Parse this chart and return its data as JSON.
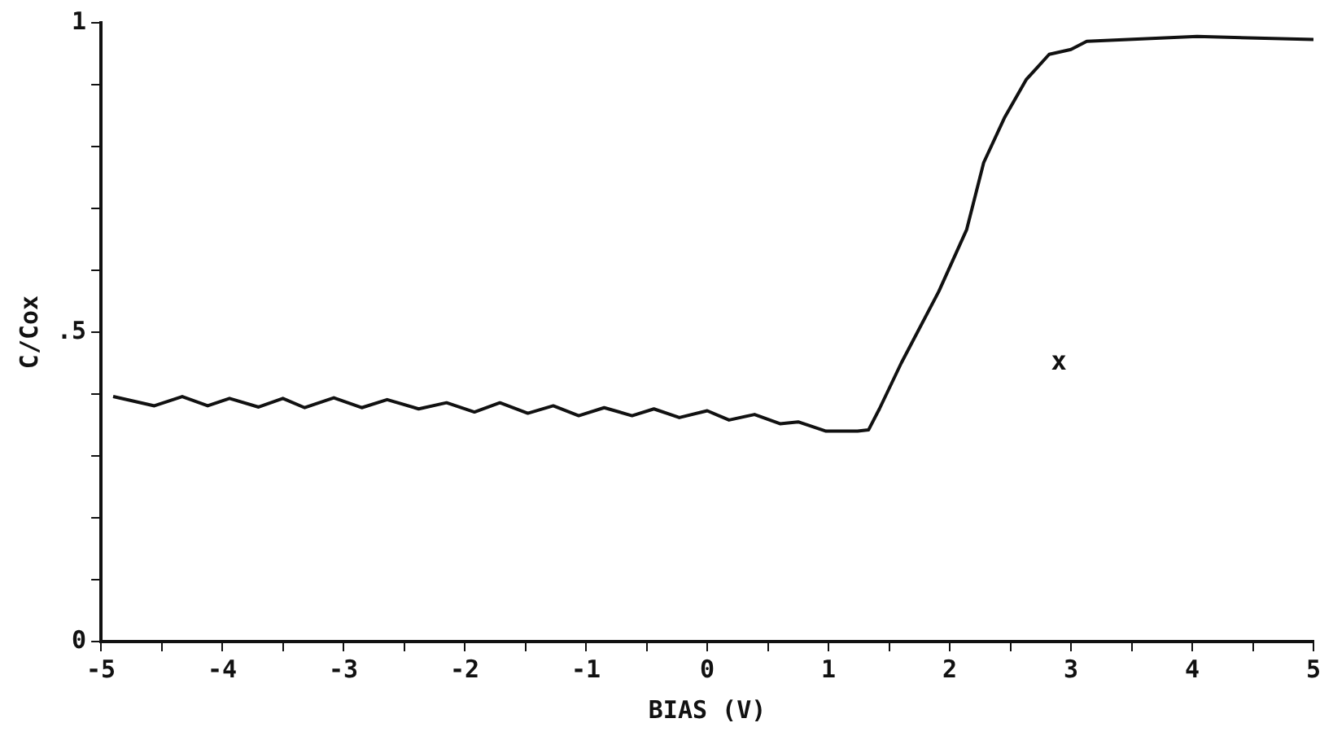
{
  "chart_data": {
    "type": "line",
    "xlabel": "BIAS (V)",
    "ylabel": "C/Cox",
    "x": [
      -4.9,
      -4.56,
      -4.33,
      -4.12,
      -3.94,
      -3.7,
      -3.5,
      -3.32,
      -3.08,
      -2.85,
      -2.64,
      -2.38,
      -2.15,
      -1.92,
      -1.71,
      -1.48,
      -1.27,
      -1.06,
      -0.85,
      -0.62,
      -0.44,
      -0.23,
      0,
      0.18,
      0.39,
      0.6,
      0.75,
      0.98,
      1.24,
      1.33,
      1.42,
      1.6,
      1.91,
      2.14,
      2.28,
      2.45,
      2.63,
      2.82,
      3.0,
      3.13,
      4.04,
      5.0
    ],
    "series": [
      {
        "color": "#111111",
        "values": [
          0.396,
          0.381,
          0.396,
          0.381,
          0.393,
          0.379,
          0.393,
          0.378,
          0.394,
          0.378,
          0.391,
          0.376,
          0.386,
          0.371,
          0.386,
          0.369,
          0.381,
          0.365,
          0.378,
          0.365,
          0.376,
          0.362,
          0.373,
          0.358,
          0.367,
          0.352,
          0.355,
          0.34,
          0.34,
          0.342,
          0.376,
          0.45,
          0.566,
          0.666,
          0.774,
          0.846,
          0.908,
          0.949,
          0.957,
          0.97,
          0.978,
          0.973
        ]
      }
    ],
    "xlim": [
      -5,
      5
    ],
    "ylim": [
      0,
      1
    ],
    "xticks": [
      -5,
      {
        "value": -4.5,
        "label": null
      },
      -4,
      {
        "value": -3.5,
        "label": null
      },
      -3,
      {
        "value": -2.5,
        "label": null
      },
      -2,
      {
        "value": -1.5,
        "label": null
      },
      -1,
      {
        "value": -0.5,
        "label": null
      },
      0,
      {
        "value": 0.5,
        "label": null
      },
      1,
      {
        "value": 1.5,
        "label": null
      },
      2,
      {
        "value": 2.5,
        "label": null
      },
      3,
      {
        "value": 3.5,
        "label": null
      },
      4,
      {
        "value": 4.5,
        "label": null
      },
      5
    ],
    "yticks": [
      {
        "value": 0,
        "label": "0"
      },
      {
        "value": 0.1,
        "label": null
      },
      {
        "value": 0.2,
        "label": null
      },
      {
        "value": 0.3,
        "label": null
      },
      {
        "value": 0.4,
        "label": null
      },
      {
        "value": 0.5,
        "label": ".5"
      },
      {
        "value": 0.6,
        "label": null
      },
      {
        "value": 0.7,
        "label": null
      },
      {
        "value": 0.8,
        "label": null
      },
      {
        "value": 0.9,
        "label": null
      },
      {
        "value": 1,
        "label": "1"
      }
    ],
    "annotations": [
      "x"
    ],
    "grid": false,
    "legend": false,
    "marker": "none",
    "line_style": "solid"
  }
}
